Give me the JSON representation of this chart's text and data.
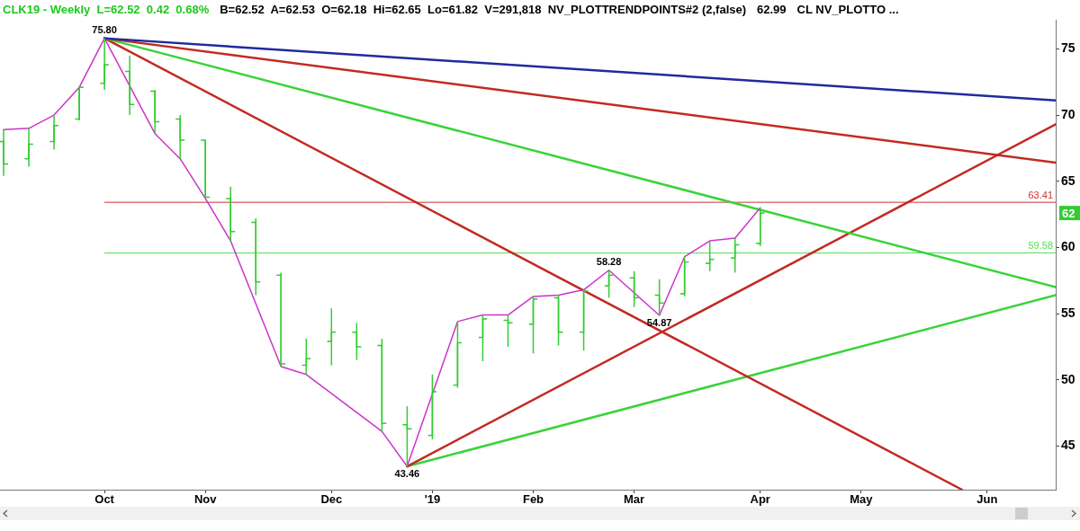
{
  "chart_data": {
    "type": "candlestick",
    "title": "CLK19 - Weekly  L=62.52  0.42  0.68%",
    "subtitle": "B=62.52  A=62.53  O=62.18  Hi=62.65  Lo=61.82  V=291,818  NV_PLOTTRENDPOINTS#2 (2,false)",
    "annotations": [
      "62.99",
      "CL NV_PLOTTO ...",
      {
        "text": "75.80",
        "x": "2018-10-05",
        "y": 75.8
      },
      {
        "text": "43.46",
        "x": "2018-12-28",
        "y": 43.46
      },
      {
        "text": "58.28",
        "x": "2019-02-22",
        "y": 58.28
      },
      {
        "text": "54.87",
        "x": "2019-03-08",
        "y": 54.87
      },
      "62"
    ],
    "x": [
      "2018-09-07",
      "2018-09-14",
      "2018-09-21",
      "2018-09-28",
      "2018-10-05",
      "2018-10-12",
      "2018-10-19",
      "2018-10-26",
      "2018-11-02",
      "2018-11-09",
      "2018-11-16",
      "2018-11-23",
      "2018-11-30",
      "2018-12-07",
      "2018-12-14",
      "2018-12-21",
      "2018-12-28",
      "2019-01-04",
      "2019-01-11",
      "2019-01-18",
      "2019-01-25",
      "2019-02-01",
      "2019-02-08",
      "2019-02-15",
      "2019-02-22",
      "2019-03-01",
      "2019-03-08",
      "2019-03-15",
      "2019-03-22",
      "2019-03-29",
      "2019-04-05"
    ],
    "ohlc": [
      [
        68.0,
        68.9,
        65.4,
        66.3
      ],
      [
        66.7,
        69.0,
        66.1,
        67.8
      ],
      [
        68.0,
        70.0,
        67.4,
        69.2
      ],
      [
        69.7,
        72.1,
        69.6,
        72.1
      ],
      [
        72.4,
        75.8,
        71.9,
        73.8
      ],
      [
        73.3,
        74.5,
        70.0,
        70.8
      ],
      [
        71.8,
        71.9,
        68.6,
        69.5
      ],
      [
        69.7,
        70.0,
        66.7,
        68.1
      ],
      [
        68.1,
        68.1,
        63.7,
        63.8
      ],
      [
        63.7,
        64.6,
        60.5,
        61.2
      ],
      [
        61.9,
        62.2,
        56.4,
        57.4
      ],
      [
        57.9,
        58.1,
        51.0,
        51.2
      ],
      [
        51.1,
        53.1,
        50.4,
        51.6
      ],
      [
        52.9,
        55.4,
        51.1,
        53.6
      ],
      [
        53.6,
        54.3,
        51.5,
        52.5
      ],
      [
        52.6,
        53.1,
        46.1,
        46.7
      ],
      [
        46.6,
        48.0,
        43.46,
        46.3
      ],
      [
        45.8,
        50.4,
        45.5,
        49.1
      ],
      [
        49.6,
        54.4,
        49.4,
        52.8
      ],
      [
        53.2,
        54.9,
        51.4,
        54.6
      ],
      [
        54.5,
        54.9,
        52.5,
        54.3
      ],
      [
        54.2,
        56.3,
        52.0,
        56.1
      ],
      [
        56.2,
        56.4,
        52.6,
        53.6
      ],
      [
        53.6,
        56.8,
        52.2,
        56.7
      ],
      [
        57.1,
        58.28,
        56.2,
        57.9
      ],
      [
        57.7,
        58.2,
        55.5,
        56.2
      ],
      [
        56.4,
        57.6,
        54.87,
        55.8
      ],
      [
        56.5,
        59.3,
        56.3,
        58.9
      ],
      [
        58.8,
        60.5,
        58.2,
        59.1
      ],
      [
        59.2,
        60.7,
        58.1,
        60.2
      ],
      [
        60.3,
        62.99,
        60.1,
        62.6
      ]
    ],
    "color": "#33cc33",
    "series": [
      {
        "type": "line",
        "color": "#cc33cc",
        "x": [
          "2018-09-07",
          "2018-09-14",
          "2018-09-21",
          "2018-09-28",
          "2018-10-05",
          "2018-10-19",
          "2018-10-26",
          "2018-11-02",
          "2018-11-09",
          "2018-11-23",
          "2018-11-30",
          "2018-12-21",
          "2018-12-28",
          "2019-01-11",
          "2019-01-18",
          "2019-01-25",
          "2019-02-01",
          "2019-02-08",
          "2019-02-15",
          "2019-02-22",
          "2019-03-08",
          "2019-03-15",
          "2019-03-22",
          "2019-03-29",
          "2019-04-05"
        ],
        "values": [
          68.9,
          69.0,
          70.0,
          72.1,
          75.8,
          68.6,
          66.7,
          63.7,
          60.5,
          51.0,
          50.4,
          46.1,
          43.46,
          54.4,
          54.9,
          54.9,
          56.3,
          56.4,
          56.8,
          58.28,
          54.87,
          59.3,
          60.5,
          60.7,
          62.99
        ]
      },
      {
        "type": "line",
        "color": "#1f2a9e",
        "x": [
          "2018-10-05",
          "2019-06-26"
        ],
        "values": [
          75.8,
          71.1
        ]
      },
      {
        "type": "line",
        "color": "#c22a22",
        "x": [
          "2018-10-05",
          "2019-06-26"
        ],
        "values": [
          75.8,
          66.4
        ]
      },
      {
        "type": "line",
        "color": "#3ad33a",
        "x": [
          "2018-10-05",
          "2019-06-26"
        ],
        "values": [
          75.8,
          57.0
        ]
      },
      {
        "type": "line",
        "color": "#c22a22",
        "x": [
          "2018-10-05",
          "2019-05-31"
        ],
        "values": [
          75.8,
          41.7
        ]
      },
      {
        "type": "line",
        "color": "#c22a22",
        "x": [
          "2018-12-28",
          "2019-06-26"
        ],
        "values": [
          43.46,
          69.3
        ]
      },
      {
        "type": "line",
        "color": "#3ad33a",
        "x": [
          "2018-12-28",
          "2019-06-26"
        ],
        "values": [
          43.46,
          56.4
        ]
      },
      {
        "type": "line",
        "color": "#cc3333",
        "x": [
          "2018-10-05",
          "2019-06-26"
        ],
        "values": [
          63.41,
          63.41
        ],
        "value_labels": [
          null,
          "63.41"
        ]
      },
      {
        "type": "line",
        "color": "#55dd55",
        "x": [
          "2018-10-05",
          "2019-06-26"
        ],
        "values": [
          59.58,
          59.58
        ],
        "value_labels": [
          null,
          "59.58"
        ]
      }
    ],
    "xlim": [
      "2018-09-06",
      "2019-06-26"
    ],
    "xticks": [
      {
        "value": "2018-10-05",
        "label": "Oct"
      },
      {
        "value": "2018-11-02",
        "label": "Nov"
      },
      {
        "value": "2018-12-07",
        "label": "Dec"
      },
      {
        "value": "2019-01-04",
        "label": "'19"
      },
      {
        "value": "2019-02-01",
        "label": "Feb"
      },
      {
        "value": "2019-03-01",
        "label": "Mar"
      },
      {
        "value": "2019-04-05",
        "label": "Apr"
      },
      {
        "value": "2019-05-03",
        "label": "May"
      },
      {
        "value": "2019-06-07",
        "label": "Jun"
      }
    ],
    "ylim": [
      41.7,
      77.2
    ],
    "yticks": [
      45,
      50,
      55,
      60,
      65,
      70,
      75
    ],
    "grid": false,
    "legend": false,
    "marker": "none"
  }
}
